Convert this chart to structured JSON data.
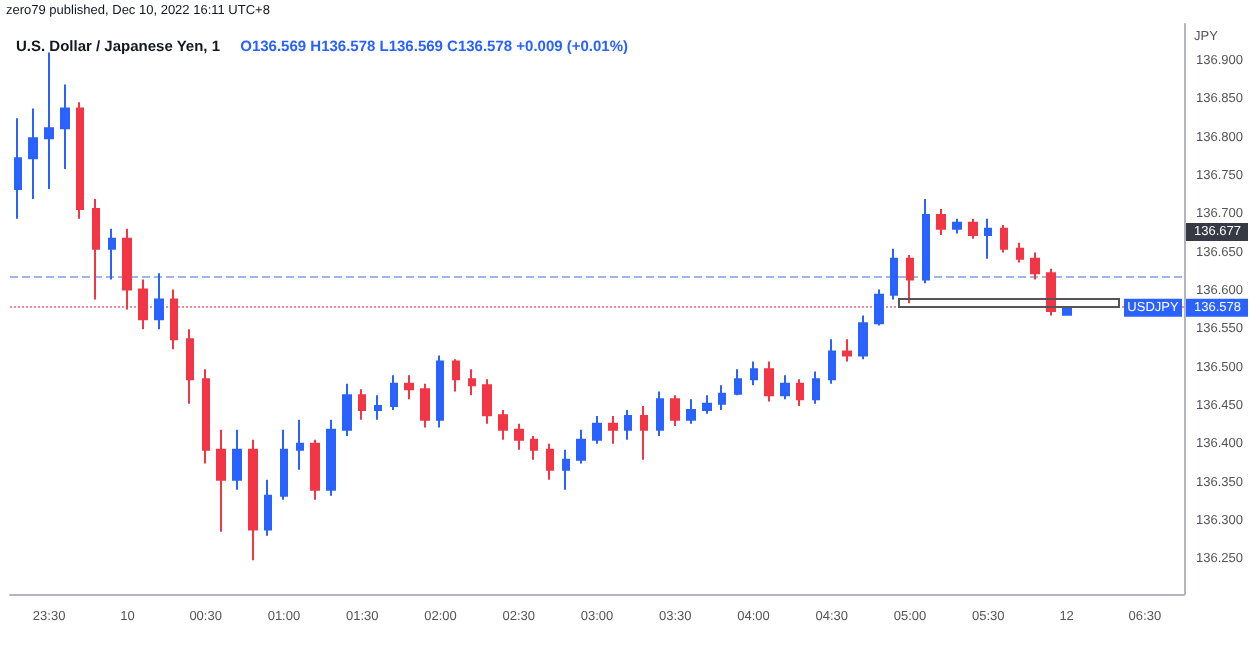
{
  "chart_data": {
    "type": "candlestick",
    "title": "U.S. Dollar / Japanese Yen, 1",
    "subtitle": "O136.569 H136.578 L136.569 C136.578 +0.009 (+0.01%)",
    "ylabel": "JPY",
    "annotations": [
      "zero79 published, Dec 10, 2022 16:11 UTC+8",
      "136.677",
      "136.578"
    ],
    "categories": [
      null,
      null,
      "23:30",
      null,
      null,
      null,
      null,
      "10",
      null,
      null,
      null,
      null,
      "00:30",
      null,
      null,
      null,
      null,
      "01:00",
      null,
      null,
      null,
      null,
      "01:30",
      null,
      null,
      null,
      null,
      "02:00",
      null,
      null,
      null,
      null,
      "02:30",
      null,
      null,
      null,
      null,
      "03:00",
      null,
      null,
      null,
      null,
      "03:30",
      null,
      null,
      null,
      null,
      "04:00",
      null,
      null,
      null,
      null,
      "04:30",
      null,
      null,
      null,
      null,
      "05:00",
      null,
      null,
      null,
      null,
      "05:30",
      null,
      null,
      null,
      null,
      "12",
      null,
      null,
      null,
      null,
      "06:30",
      null,
      null
    ],
    "ohlc": [
      [
        136.733,
        136.825,
        136.694,
        136.773
      ],
      [
        136.773,
        136.838,
        136.72,
        136.799
      ],
      [
        136.799,
        136.911,
        136.733,
        136.812
      ],
      [
        136.812,
        136.869,
        136.759,
        136.838
      ],
      [
        136.838,
        136.846,
        136.694,
        136.707
      ],
      [
        136.707,
        136.72,
        136.589,
        136.655
      ],
      [
        136.655,
        136.681,
        136.615,
        136.668
      ],
      [
        136.668,
        136.681,
        136.576,
        136.602
      ],
      [
        136.602,
        136.615,
        136.55,
        136.563
      ],
      [
        136.563,
        136.623,
        136.55,
        136.589
      ],
      [
        136.589,
        136.602,
        136.524,
        136.537
      ],
      [
        136.537,
        136.55,
        136.453,
        136.485
      ],
      [
        136.485,
        136.498,
        136.375,
        136.393
      ],
      [
        136.393,
        136.419,
        136.286,
        136.354
      ],
      [
        136.354,
        136.419,
        136.341,
        136.393
      ],
      [
        136.393,
        136.406,
        136.249,
        136.289
      ],
      [
        136.289,
        136.354,
        136.281,
        136.333
      ],
      [
        136.333,
        136.419,
        136.328,
        136.393
      ],
      [
        136.393,
        136.432,
        136.367,
        136.401
      ],
      [
        136.401,
        136.406,
        136.328,
        136.341
      ],
      [
        136.341,
        136.432,
        136.333,
        136.419
      ],
      [
        136.419,
        136.479,
        136.411,
        136.464
      ],
      [
        136.464,
        136.472,
        136.432,
        136.445
      ],
      [
        136.445,
        136.464,
        136.432,
        136.45
      ],
      [
        136.45,
        136.49,
        136.445,
        136.479
      ],
      [
        136.479,
        136.49,
        136.459,
        136.472
      ],
      [
        136.472,
        136.479,
        136.422,
        136.432
      ],
      [
        136.432,
        136.516,
        136.422,
        136.508
      ],
      [
        136.508,
        136.511,
        136.469,
        136.485
      ],
      [
        136.485,
        136.498,
        136.464,
        136.477
      ],
      [
        136.477,
        136.485,
        136.427,
        136.438
      ],
      [
        136.438,
        136.445,
        136.406,
        136.419
      ],
      [
        136.419,
        136.427,
        136.393,
        136.406
      ],
      [
        136.406,
        136.411,
        136.38,
        136.393
      ],
      [
        136.393,
        136.401,
        136.354,
        136.367
      ],
      [
        136.367,
        136.393,
        136.341,
        136.38
      ],
      [
        136.38,
        136.419,
        136.375,
        136.406
      ],
      [
        136.406,
        136.437,
        136.401,
        136.427
      ],
      [
        136.427,
        136.437,
        136.401,
        136.419
      ],
      [
        136.419,
        136.445,
        136.406,
        136.437
      ],
      [
        136.437,
        136.45,
        136.38,
        136.419
      ],
      [
        136.419,
        136.469,
        136.411,
        136.459
      ],
      [
        136.459,
        136.464,
        136.424,
        136.432
      ],
      [
        136.432,
        136.459,
        136.427,
        136.445
      ],
      [
        136.445,
        136.464,
        136.44,
        136.453
      ],
      [
        136.453,
        136.477,
        136.445,
        136.466
      ],
      [
        136.466,
        136.498,
        136.464,
        136.485
      ],
      [
        136.485,
        136.508,
        136.477,
        136.498
      ],
      [
        136.498,
        136.508,
        136.456,
        136.464
      ],
      [
        136.464,
        136.49,
        136.459,
        136.479
      ],
      [
        136.479,
        136.485,
        136.45,
        136.459
      ],
      [
        136.459,
        136.495,
        136.453,
        136.485
      ],
      [
        136.485,
        136.537,
        136.479,
        136.521
      ],
      [
        136.521,
        136.537,
        136.508,
        136.516
      ],
      [
        136.516,
        136.568,
        136.511,
        136.558
      ],
      [
        136.558,
        136.602,
        136.555,
        136.595
      ],
      [
        136.595,
        136.655,
        136.589,
        136.642
      ],
      [
        136.642,
        136.647,
        136.584,
        136.615
      ],
      [
        136.615,
        136.72,
        136.61,
        136.699
      ],
      [
        136.699,
        136.707,
        136.673,
        136.681
      ],
      [
        136.681,
        136.694,
        136.675,
        136.689
      ],
      [
        136.689,
        136.694,
        136.668,
        136.673
      ],
      [
        136.673,
        136.694,
        136.642,
        136.681
      ],
      [
        136.681,
        136.686,
        136.65,
        136.655
      ],
      [
        136.655,
        136.663,
        136.637,
        136.642
      ],
      [
        136.642,
        136.65,
        136.615,
        136.623
      ],
      [
        136.623,
        136.629,
        136.568,
        136.574
      ],
      [
        136.569,
        136.578,
        136.569,
        136.578
      ],
      null,
      null,
      null,
      null,
      null,
      null,
      null
    ],
    "colors": [
      "#2962ff",
      "#2962ff",
      "#2962ff",
      "#2962ff",
      "#f23645",
      "#f23645",
      "#2962ff",
      "#f23645",
      "#f23645",
      "#2962ff",
      "#f23645",
      "#f23645",
      "#f23645",
      "#f23645",
      "#2962ff",
      "#f23645",
      "#2962ff",
      "#2962ff",
      "#2962ff",
      "#f23645",
      "#2962ff",
      "#2962ff",
      "#f23645",
      "#2962ff",
      "#2962ff",
      "#f23645",
      "#f23645",
      "#2962ff",
      "#f23645",
      "#f23645",
      "#f23645",
      "#f23645",
      "#f23645",
      "#f23645",
      "#f23645",
      "#2962ff",
      "#2962ff",
      "#2962ff",
      "#f23645",
      "#2962ff",
      "#f23645",
      "#2962ff",
      "#f23645",
      "#2962ff",
      "#2962ff",
      "#2962ff",
      "#2962ff",
      "#2962ff",
      "#f23645",
      "#2962ff",
      "#f23645",
      "#2962ff",
      "#2962ff",
      "#f23645",
      "#2962ff",
      "#2962ff",
      "#2962ff",
      "#f23645",
      "#2962ff",
      "#f23645",
      "#2962ff",
      "#f23645",
      "#2962ff",
      "#f23645",
      "#f23645",
      "#f23645",
      "#f23645",
      "#2962ff",
      null,
      null,
      null,
      null,
      null,
      null,
      null
    ],
    "ylim": [
      136.205,
      136.948
    ],
    "yticks": [
      {
        "value": 136.25,
        "label": "136.250"
      },
      {
        "value": 136.3,
        "label": "136.300"
      },
      {
        "value": 136.35,
        "label": "136.350"
      },
      {
        "value": 136.4,
        "label": "136.400"
      },
      {
        "value": 136.45,
        "label": "136.450"
      },
      {
        "value": 136.5,
        "label": "136.500"
      },
      {
        "value": 136.55,
        "label": "136.550"
      },
      {
        "value": 136.6,
        "label": "136.600"
      },
      {
        "value": 136.65,
        "label": "136.650"
      },
      {
        "value": 136.7,
        "label": "136.700"
      },
      {
        "value": 136.75,
        "label": "136.750"
      },
      {
        "value": 136.8,
        "label": "136.800"
      },
      {
        "value": 136.85,
        "label": "136.850"
      },
      {
        "value": 136.9,
        "label": "136.900"
      }
    ],
    "ref_lines": [
      {
        "axis": "y",
        "value": 136.62,
        "color": "#9fb4ea",
        "line_style": "dashed"
      },
      {
        "axis": "y",
        "value": 136.578,
        "label": "USDJPY",
        "color": "#f28c96",
        "line_style": "dotted"
      }
    ]
  }
}
